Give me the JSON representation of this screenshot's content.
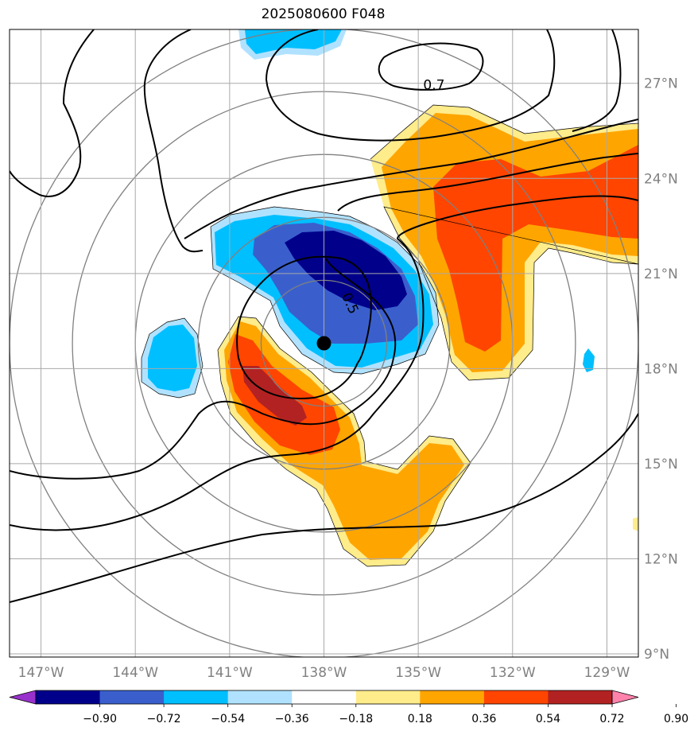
{
  "title": "2025080600 F048",
  "map": {
    "lon_range": [
      -148,
      -128
    ],
    "lat_range": [
      8.9,
      28.7
    ],
    "x_ticks": [
      {
        "lon": -147,
        "label": "147°W"
      },
      {
        "lon": -144,
        "label": "144°W"
      },
      {
        "lon": -141,
        "label": "141°W"
      },
      {
        "lon": -138,
        "label": "138°W"
      },
      {
        "lon": -135,
        "label": "135°W"
      },
      {
        "lon": -132,
        "label": "132°W"
      },
      {
        "lon": -129,
        "label": "129°W"
      }
    ],
    "y_ticks": [
      {
        "lat": 9,
        "label": "9°N"
      },
      {
        "lat": 12,
        "label": "12°N"
      },
      {
        "lat": 15,
        "label": "15°N"
      },
      {
        "lat": 18,
        "label": "18°N"
      },
      {
        "lat": 21,
        "label": "21°N"
      },
      {
        "lat": 24,
        "label": "24°N"
      },
      {
        "lat": 27,
        "label": "27°N"
      }
    ],
    "storm_center": {
      "lon": -138.0,
      "lat": 18.8
    },
    "range_rings_deg": [
      2,
      4,
      6,
      8,
      10
    ],
    "contour_labels": [
      {
        "text": "0.7",
        "lon": -134.5,
        "lat": 26.8
      },
      {
        "text": "0.5",
        "lon": -137.3,
        "lat": 20.0
      }
    ]
  },
  "colorbar": {
    "colors": [
      "#9932cc",
      "#00008b",
      "#3a5fcd",
      "#00bfff",
      "#b0e2ff",
      "#ffffff",
      "#ffec8b",
      "#ffa500",
      "#ff4500",
      "#b22222",
      "#ff82ab"
    ],
    "labels": [
      "−0.90",
      "−0.72",
      "−0.54",
      "−0.36",
      "−0.18",
      "0.18",
      "0.36",
      "0.54",
      "0.72",
      "0.90"
    ]
  }
}
